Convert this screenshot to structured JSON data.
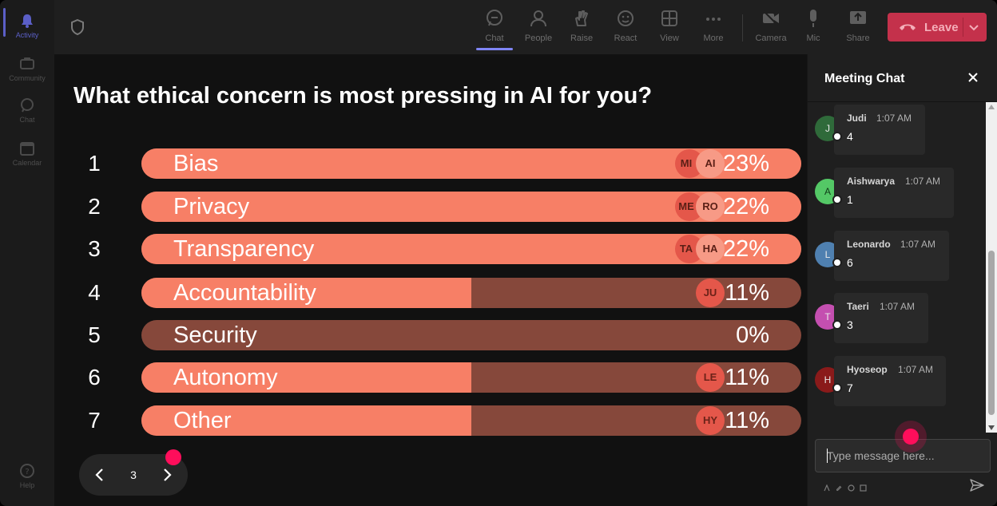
{
  "rail": {
    "items": [
      {
        "label": "Activity",
        "icon": "bell-icon"
      },
      {
        "label": "Community",
        "icon": "community-icon"
      },
      {
        "label": "Chat",
        "icon": "chat-icon"
      },
      {
        "label": "Calendar",
        "icon": "calendar-icon"
      },
      {
        "label": "Help",
        "icon": "help-icon"
      }
    ]
  },
  "toolbar": {
    "chat": "Chat",
    "people": "People",
    "raise": "Raise",
    "react": "React",
    "view": "View",
    "more": "More",
    "camera": "Camera",
    "mic": "Mic",
    "share": "Share",
    "leave": "Leave"
  },
  "poll": {
    "question": "What ethical concern is most pressing in AI for you?",
    "options": [
      {
        "num": "1",
        "label": "Bias",
        "pct": "23%",
        "fill": 1.0,
        "avatars": [
          "MI",
          "AI"
        ]
      },
      {
        "num": "2",
        "label": "Privacy",
        "pct": "22%",
        "fill": 1.0,
        "avatars": [
          "ME",
          "RO"
        ]
      },
      {
        "num": "3",
        "label": "Transparency",
        "pct": "22%",
        "fill": 1.0,
        "avatars": [
          "TA",
          "HA"
        ]
      },
      {
        "num": "4",
        "label": "Accountability",
        "pct": "11%",
        "fill": 0.5,
        "avatars": [
          "JU"
        ]
      },
      {
        "num": "5",
        "label": "Security",
        "pct": "0%",
        "fill": 0.0,
        "avatars": []
      },
      {
        "num": "6",
        "label": "Autonomy",
        "pct": "11%",
        "fill": 0.5,
        "avatars": [
          "LE"
        ]
      },
      {
        "num": "7",
        "label": "Other",
        "pct": "11%",
        "fill": 0.5,
        "avatars": [
          "HY"
        ]
      }
    ],
    "page": "3"
  },
  "chat": {
    "title": "Meeting Chat",
    "messages": [
      {
        "initial": "J",
        "name": "Judi",
        "time": "1:07 AM",
        "text": "4",
        "color": "#2f6a3a"
      },
      {
        "initial": "A",
        "name": "Aishwarya",
        "time": "1:07 AM",
        "text": "1",
        "color": "#54c866"
      },
      {
        "initial": "L",
        "name": "Leonardo",
        "time": "1:07 AM",
        "text": "6",
        "color": "#4f80b0"
      },
      {
        "initial": "T",
        "name": "Taeri",
        "time": "1:07 AM",
        "text": "3",
        "color": "#c44fb0"
      },
      {
        "initial": "H",
        "name": "Hyoseop",
        "time": "1:07 AM",
        "text": "7",
        "color": "#8a1a1a"
      }
    ],
    "placeholder": "Type message here..."
  },
  "colors": {
    "bar_fill": "#f77f66",
    "bar_track": "#86483b",
    "leave": "#c4314b",
    "accent": "#5b5fc7",
    "pointer": "#ff0e5b"
  }
}
